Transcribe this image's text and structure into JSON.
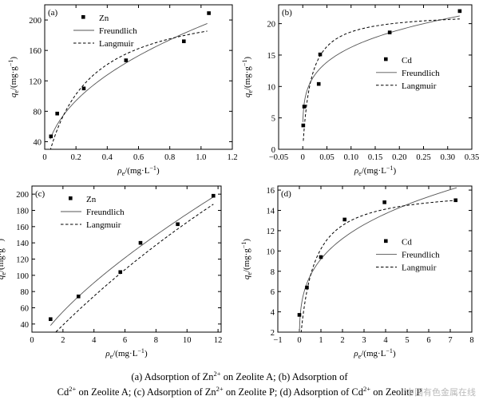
{
  "caption": {
    "line1": [
      "(a) Adsorption of Zn",
      "2+",
      " on Zeolite A; (b) Adsorption of"
    ],
    "line2": [
      "Cd",
      "2+",
      " on Zeolite A; (c) Adsorption of Zn",
      "2+",
      " on Zeolite P; (d) Adsorption of Cd",
      "2+",
      " on Zeolite P"
    ]
  },
  "watermark": "中国有色金属在线",
  "chart_data": [
    {
      "panel": "(a)",
      "type": "scatter",
      "xlabel": "ρe/(mg·L⁻¹)",
      "ylabel": "qe/(mg·g⁻¹)",
      "xlim": [
        0,
        1.2
      ],
      "ylim": [
        30,
        220
      ],
      "xticks": [
        0,
        0.2,
        0.4,
        0.6,
        0.8,
        1.0,
        1.2
      ],
      "yticks": [
        40,
        80,
        120,
        160,
        200
      ],
      "xtick_labels": [
        "0",
        "0.2",
        "0.4",
        "0.6",
        "0.8",
        "1.0",
        "1.2"
      ],
      "ytick_labels": [
        "40",
        "80",
        "120",
        "160",
        "200"
      ],
      "legend": {
        "position": "top-left",
        "points": "Zn",
        "freundlich": "Freundlich",
        "langmuir": "Langmuir"
      },
      "points": {
        "x": [
          0.04,
          0.08,
          0.25,
          0.52,
          0.89,
          1.05
        ],
        "y": [
          47,
          77,
          110,
          147,
          172,
          209
        ]
      },
      "fits": {
        "freundlich": {
          "model": "freundlich",
          "K": 192,
          "n": 2.25,
          "xrange": [
            0.035,
            1.04
          ]
        },
        "langmuir": {
          "model": "langmuir",
          "qm": 230,
          "KL": 4.0,
          "xrange": [
            0.035,
            1.04
          ]
        }
      }
    },
    {
      "panel": "(b)",
      "type": "scatter",
      "xlabel": "ρe/(mg·L⁻¹)",
      "ylabel": "qe/(mg·g⁻¹)",
      "xlim": [
        -0.05,
        0.35
      ],
      "ylim": [
        0,
        23
      ],
      "xticks": [
        -0.05,
        0,
        0.05,
        0.1,
        0.15,
        0.2,
        0.25,
        0.3,
        0.35
      ],
      "yticks": [
        0,
        5,
        10,
        15,
        20
      ],
      "xtick_labels": [
        "−0.05",
        "0",
        "0.05",
        "0.10",
        "0.15",
        "0.20",
        "0.25",
        "0.30",
        "0.35"
      ],
      "ytick_labels": [
        "0",
        "5",
        "10",
        "15",
        "20"
      ],
      "legend": {
        "position": "center-right",
        "points": "Cd",
        "freundlich": "Freundlich",
        "langmuir": "Langmuir"
      },
      "points": {
        "x": [
          0.001,
          0.003,
          0.033,
          0.036,
          0.18,
          0.325
        ],
        "y": [
          3.8,
          6.8,
          10.4,
          15.1,
          18.6,
          22.0
        ]
      },
      "fits": {
        "freundlich": {
          "model": "freundlich",
          "K": 27.4,
          "n": 4.4,
          "xrange": [
            0.0003,
            0.325
          ]
        },
        "langmuir": {
          "model": "langmuir",
          "qm": 21.8,
          "KL": 60,
          "xrange": [
            0.0011,
            0.325
          ]
        }
      }
    },
    {
      "panel": "(c)",
      "type": "scatter",
      "xlabel": "ρe/(mg·L⁻¹)",
      "ylabel": "qe/(mg·g⁻¹)",
      "xlim": [
        0,
        12.2
      ],
      "ylim": [
        30,
        210
      ],
      "xticks": [
        0,
        2,
        4,
        6,
        8,
        10,
        12
      ],
      "yticks": [
        40,
        60,
        80,
        100,
        120,
        140,
        160,
        180,
        200
      ],
      "xtick_labels": [
        "0",
        "2",
        "4",
        "6",
        "8",
        "10",
        "12"
      ],
      "ytick_labels": [
        "40",
        "60",
        "80",
        "100",
        "120",
        "140",
        "160",
        "180",
        "200"
      ],
      "legend": {
        "position": "top-left",
        "points": "Zn",
        "freundlich": "Freundlich",
        "langmuir": "Langmuir"
      },
      "points": {
        "x": [
          1.2,
          3.0,
          5.7,
          7.0,
          9.4,
          11.7
        ],
        "y": [
          46,
          74,
          104,
          140,
          163,
          198
        ]
      },
      "fits": {
        "freundlich": {
          "model": "freundlich",
          "K": 33.5,
          "n": 1.39,
          "xrange": [
            1.2,
            11.7
          ]
        },
        "langmuir": {
          "model": "langmuir",
          "qm": 900,
          "KL": 0.0225,
          "xrange": [
            1.55,
            11.7
          ]
        }
      }
    },
    {
      "panel": "(d)",
      "type": "scatter",
      "xlabel": "ρe/(mg·L⁻¹)",
      "ylabel": "qe/(mg·g⁻¹)",
      "xlim": [
        -1,
        8
      ],
      "ylim": [
        2,
        16.4
      ],
      "xticks": [
        -1,
        0,
        1,
        2,
        3,
        4,
        5,
        6,
        7,
        8
      ],
      "yticks": [
        2,
        4,
        6,
        8,
        10,
        12,
        14,
        16
      ],
      "xtick_labels": [
        "−1",
        "0",
        "1",
        "2",
        "3",
        "4",
        "5",
        "6",
        "7",
        "8"
      ],
      "ytick_labels": [
        "2",
        "4",
        "6",
        "8",
        "10",
        "12",
        "14",
        "16"
      ],
      "legend": {
        "position": "center-right",
        "points": "Cd",
        "freundlich": "Freundlich",
        "langmuir": "Langmuir"
      },
      "points": {
        "x": [
          0.0,
          0.35,
          1.0,
          2.1,
          3.95,
          7.25
        ],
        "y": [
          3.7,
          6.4,
          9.4,
          13.1,
          14.8,
          15.0
        ]
      },
      "fits": {
        "freundlich": {
          "model": "freundlich",
          "K": 9.2,
          "n": 3.5,
          "xrange": [
            0.001,
            7.3
          ]
        },
        "langmuir": {
          "model": "langmuir",
          "qm": 16.2,
          "KL": 1.7,
          "xrange": [
            0.08,
            7.3
          ]
        }
      }
    }
  ]
}
